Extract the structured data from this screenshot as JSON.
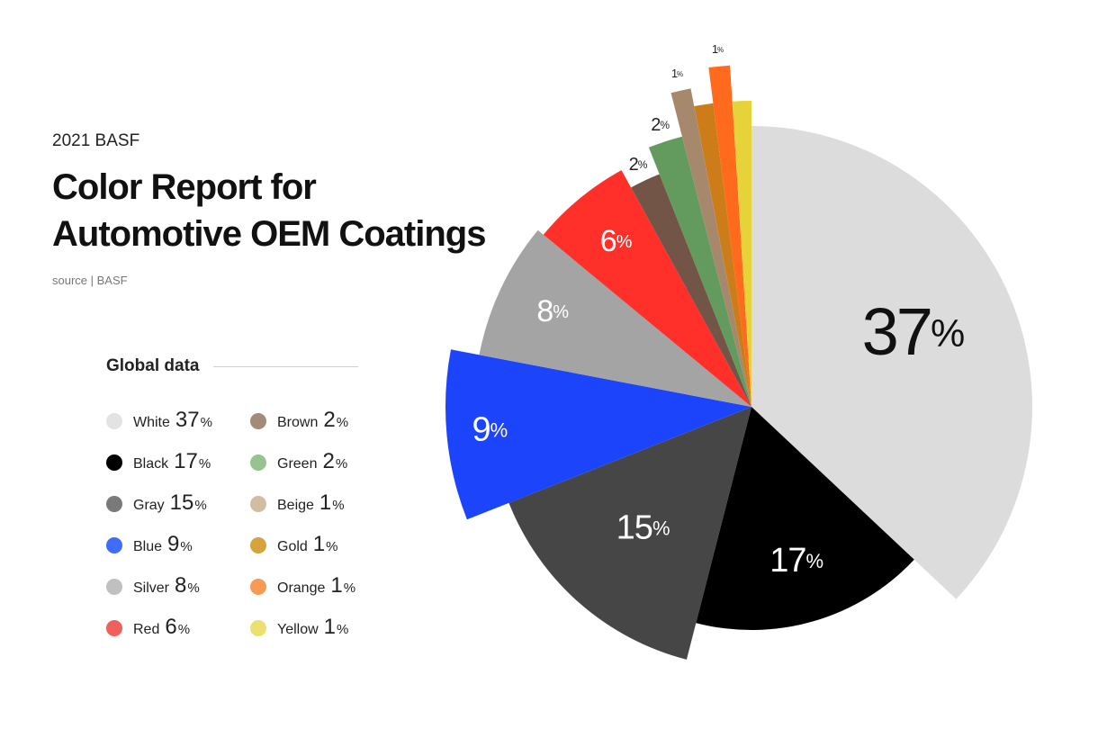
{
  "header": {
    "eyebrow": "2021 BASF",
    "title_line1": "Color Report for",
    "title_line2": "Automotive OEM Coatings",
    "source": "source | BASF"
  },
  "legend": {
    "title": "Global data",
    "items": [
      {
        "name": "White",
        "value": "37",
        "pct": "%",
        "color": "#e3e3e3"
      },
      {
        "name": "Brown",
        "value": "2",
        "pct": "%",
        "color": "#a48a78"
      },
      {
        "name": "Black",
        "value": "17",
        "pct": "%",
        "color": "#000000"
      },
      {
        "name": "Green",
        "value": "2",
        "pct": "%",
        "color": "#97c391"
      },
      {
        "name": "Gray",
        "value": "15",
        "pct": "%",
        "color": "#7a7a7a"
      },
      {
        "name": "Beige",
        "value": "1",
        "pct": "%",
        "color": "#d2bda3"
      },
      {
        "name": "Blue",
        "value": "9",
        "pct": "%",
        "color": "#3d6dfa"
      },
      {
        "name": "Gold",
        "value": "1",
        "pct": "%",
        "color": "#d6a33b"
      },
      {
        "name": "Silver",
        "value": "8",
        "pct": "%",
        "color": "#c0c0c0"
      },
      {
        "name": "Orange",
        "value": "1",
        "pct": "%",
        "color": "#f79a55"
      },
      {
        "name": "Red",
        "value": "6",
        "pct": "%",
        "color": "#f0605a"
      },
      {
        "name": "Yellow",
        "value": "1",
        "pct": "%",
        "color": "#ece070"
      }
    ]
  },
  "chart_data": {
    "type": "pie",
    "title": "Color Report for Automotive OEM Coatings",
    "categories": [
      "White",
      "Black",
      "Gray",
      "Blue",
      "Silver",
      "Red",
      "Brown",
      "Green",
      "Beige",
      "Gold",
      "Orange",
      "Yellow"
    ],
    "values": [
      37,
      17,
      15,
      9,
      8,
      6,
      2,
      2,
      1,
      1,
      1,
      1
    ],
    "labels": [
      "37",
      "17",
      "15",
      "9",
      "8",
      "6",
      "2",
      "2",
      "1",
      "",
      "1",
      ""
    ],
    "unit": "%",
    "colors": [
      "#dcdcdc",
      "#000000",
      "#464646",
      "#1c45fb",
      "#a4a4a4",
      "#ff2f2a",
      "#735548",
      "#629b5d",
      "#a6896d",
      "#cc7d1a",
      "#ff6a1c",
      "#e6d33a"
    ],
    "label_colors": [
      "#111111",
      "#ffffff",
      "#ffffff",
      "#ffffff",
      "#ffffff",
      "#ffffff",
      "#222222",
      "#222222",
      "#222222",
      "#222222",
      "#222222",
      "#222222"
    ],
    "start_angle_deg": 0,
    "direction": "clockwise",
    "legend_placement": "left"
  }
}
